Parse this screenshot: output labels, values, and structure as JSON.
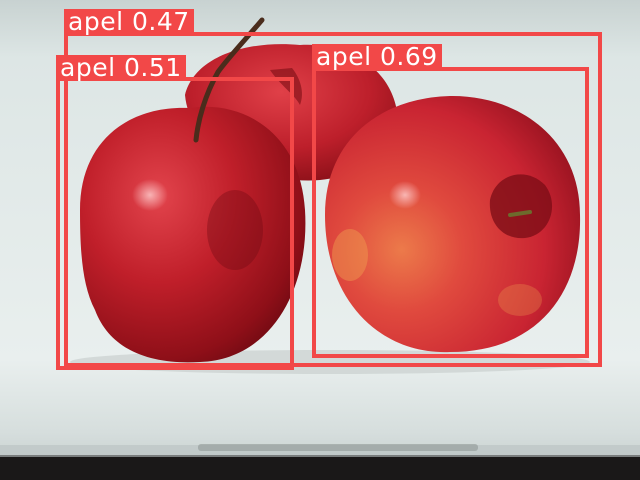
{
  "detections": [
    {
      "label": "apel",
      "score": "0.47",
      "display": "apel 0.47"
    },
    {
      "label": "apel",
      "score": "0.51",
      "display": "apel 0.51"
    },
    {
      "label": "apel",
      "score": "0.69",
      "display": "apel 0.69"
    }
  ],
  "colors": {
    "box": "#f24848",
    "label_text": "#ffffff",
    "background": "#dfe7e6",
    "apple_red": "#b01822"
  }
}
